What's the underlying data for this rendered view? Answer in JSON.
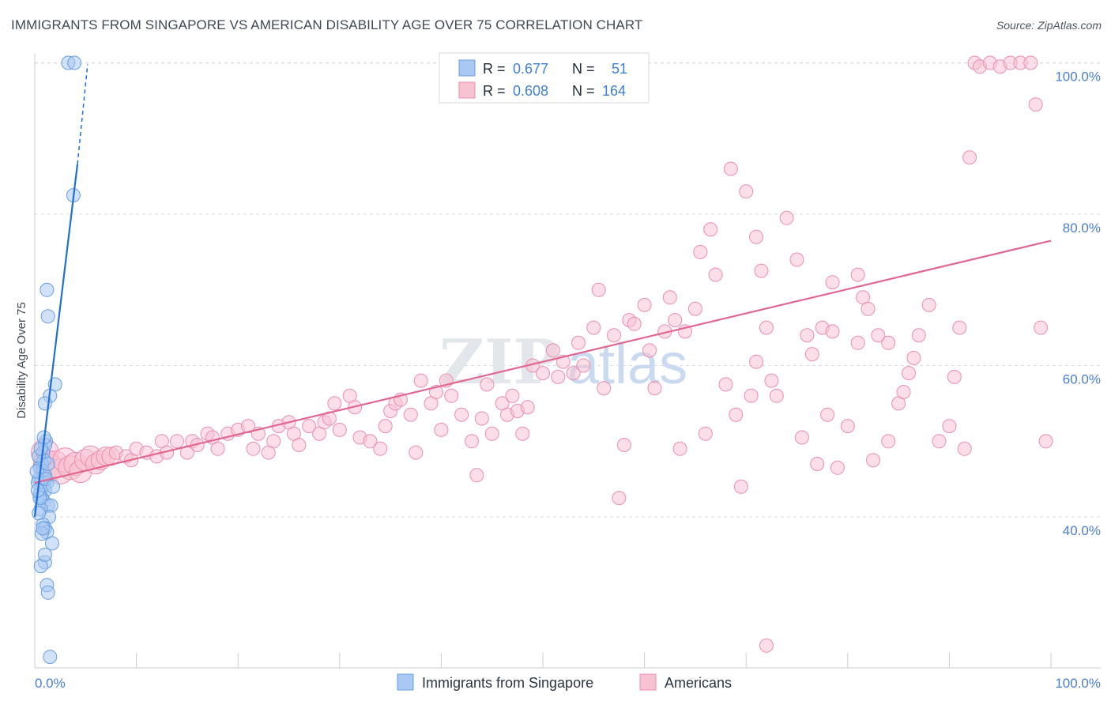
{
  "title": "IMMIGRANTS FROM SINGAPORE VS AMERICAN DISABILITY AGE OVER 75 CORRELATION CHART",
  "source": "Source: ZipAtlas.com",
  "watermark": {
    "zip": "ZIP",
    "atlas": "atlas"
  },
  "colors": {
    "blue_fill": "#a9c8f2",
    "blue_stroke": "#6a9fe0",
    "blue_line": "#1f6fd6",
    "pink_fill": "#f7c3d3",
    "pink_stroke": "#ec8fae",
    "pink_line": "#e2678f",
    "tick_color": "#4a7fd0",
    "grid": "#d9dde3"
  },
  "legend": {
    "rows": [
      {
        "r_label": "R =",
        "r_value": "0.677",
        "n_label": "N =",
        "n_value": "51"
      },
      {
        "r_label": "R =",
        "r_value": "0.608",
        "n_label": "N =",
        "n_value": "164"
      }
    ]
  },
  "bottom_legend": [
    "Immigrants from Singapore",
    "Americans"
  ],
  "chart_data": {
    "type": "scatter",
    "title": "IMMIGRANTS FROM SINGAPORE VS AMERICAN DISABILITY AGE OVER 75 CORRELATION CHART",
    "xlabel": "",
    "ylabel": "Disability Age Over 75",
    "xlim": [
      0,
      100
    ],
    "ylim": [
      20,
      100
    ],
    "x_ticks": [
      "0.0%",
      "100.0%"
    ],
    "y_ticks": [
      {
        "value": 40,
        "label": "40.0%"
      },
      {
        "value": 60,
        "label": "60.0%"
      },
      {
        "value": 80,
        "label": "80.0%"
      },
      {
        "value": 100,
        "label": "100.0%"
      }
    ],
    "series": [
      {
        "name": "Immigrants from Singapore",
        "r": 0.677,
        "n": 51,
        "trend": {
          "x0": 0,
          "y0": 40,
          "x1": 4.2,
          "y1": 86.6,
          "dash_x1": 5.2,
          "dash_y1": 99.8
        },
        "points": [
          [
            3.3,
            100
          ],
          [
            3.9,
            100
          ],
          [
            3.8,
            82.5
          ],
          [
            1.2,
            70
          ],
          [
            1.3,
            66.5
          ],
          [
            2.0,
            57.5
          ],
          [
            1.5,
            56
          ],
          [
            1.0,
            55
          ],
          [
            1.1,
            50
          ],
          [
            1.0,
            49.5
          ],
          [
            0.8,
            48.5
          ],
          [
            0.9,
            47.5
          ],
          [
            0.7,
            47
          ],
          [
            0.5,
            46.5
          ],
          [
            0.8,
            46
          ],
          [
            1.0,
            45.5
          ],
          [
            0.4,
            45
          ],
          [
            0.6,
            44.5
          ],
          [
            1.2,
            44.5
          ],
          [
            0.8,
            44
          ],
          [
            1.0,
            43.5
          ],
          [
            0.5,
            43
          ],
          [
            0.7,
            42.5
          ],
          [
            0.9,
            42
          ],
          [
            1.3,
            41.5
          ],
          [
            1.6,
            41.5
          ],
          [
            0.6,
            41
          ],
          [
            1.4,
            40
          ],
          [
            0.8,
            39
          ],
          [
            1.0,
            38.5
          ],
          [
            1.2,
            38
          ],
          [
            0.7,
            37.8
          ],
          [
            1.7,
            36.5
          ],
          [
            1.0,
            34
          ],
          [
            0.6,
            33.5
          ],
          [
            1.2,
            31
          ],
          [
            1.3,
            30
          ],
          [
            1.5,
            21.5
          ],
          [
            0.3,
            44.5
          ],
          [
            0.2,
            46
          ],
          [
            0.4,
            48
          ],
          [
            0.6,
            49
          ],
          [
            0.9,
            50.5
          ],
          [
            0.5,
            42.5
          ],
          [
            0.3,
            43.5
          ],
          [
            1.1,
            45
          ],
          [
            1.3,
            47
          ],
          [
            0.8,
            38.5
          ],
          [
            1.0,
            35
          ],
          [
            0.4,
            40.5
          ],
          [
            1.8,
            44
          ]
        ]
      },
      {
        "name": "Americans",
        "r": 0.608,
        "n": 164,
        "trend": {
          "x0": 0,
          "y0": 44.5,
          "x1": 100,
          "y1": 76.5
        },
        "points": [
          [
            1,
            48.5
          ],
          [
            1.2,
            47
          ],
          [
            1.5,
            46.5
          ],
          [
            2,
            47
          ],
          [
            2.5,
            46
          ],
          [
            3,
            47.5
          ],
          [
            3.5,
            46.5
          ],
          [
            4,
            47
          ],
          [
            4.5,
            46
          ],
          [
            5,
            47.5
          ],
          [
            5.5,
            48
          ],
          [
            6,
            47
          ],
          [
            6.5,
            47.5
          ],
          [
            7,
            48
          ],
          [
            7.5,
            48
          ],
          [
            8,
            48.5
          ],
          [
            9,
            48
          ],
          [
            9.5,
            47.5
          ],
          [
            10,
            49
          ],
          [
            11,
            48.5
          ],
          [
            12,
            48
          ],
          [
            12.5,
            50
          ],
          [
            13,
            48.5
          ],
          [
            14,
            50
          ],
          [
            15,
            48.5
          ],
          [
            15.5,
            50
          ],
          [
            16,
            49.5
          ],
          [
            17,
            51
          ],
          [
            17.5,
            50.5
          ],
          [
            18,
            49
          ],
          [
            19,
            51
          ],
          [
            20,
            51.5
          ],
          [
            21,
            52
          ],
          [
            21.5,
            49
          ],
          [
            22,
            51
          ],
          [
            23,
            48.5
          ],
          [
            23.5,
            50
          ],
          [
            24,
            52
          ],
          [
            25,
            52.5
          ],
          [
            25.5,
            51
          ],
          [
            26,
            49.5
          ],
          [
            27,
            52
          ],
          [
            28,
            51
          ],
          [
            28.5,
            52.5
          ],
          [
            29,
            53
          ],
          [
            29.5,
            55
          ],
          [
            30,
            51.5
          ],
          [
            31,
            56
          ],
          [
            31.5,
            54.5
          ],
          [
            32,
            50.5
          ],
          [
            33,
            50
          ],
          [
            34,
            49
          ],
          [
            34.5,
            52
          ],
          [
            35,
            54
          ],
          [
            35.5,
            55
          ],
          [
            36,
            55.5
          ],
          [
            37,
            53.5
          ],
          [
            37.5,
            48.5
          ],
          [
            38,
            58
          ],
          [
            39,
            55
          ],
          [
            39.5,
            56.5
          ],
          [
            40,
            51.5
          ],
          [
            40.5,
            58
          ],
          [
            41,
            56
          ],
          [
            42,
            53.5
          ],
          [
            43,
            50
          ],
          [
            43.5,
            45.5
          ],
          [
            44,
            53
          ],
          [
            44.5,
            57.5
          ],
          [
            45,
            51
          ],
          [
            46,
            55
          ],
          [
            46.5,
            53.5
          ],
          [
            47,
            56
          ],
          [
            47.5,
            54
          ],
          [
            48,
            51
          ],
          [
            48.5,
            54.5
          ],
          [
            49,
            60
          ],
          [
            50,
            59
          ],
          [
            51,
            62
          ],
          [
            51.5,
            58.5
          ],
          [
            52,
            60.5
          ],
          [
            53,
            59
          ],
          [
            53.5,
            63
          ],
          [
            54,
            60
          ],
          [
            55,
            65
          ],
          [
            55.5,
            70
          ],
          [
            56,
            57
          ],
          [
            57,
            64
          ],
          [
            57.5,
            42.5
          ],
          [
            58,
            49.5
          ],
          [
            58.5,
            66
          ],
          [
            59,
            65.5
          ],
          [
            60,
            68
          ],
          [
            60.5,
            62
          ],
          [
            61,
            57
          ],
          [
            62,
            64.5
          ],
          [
            62.5,
            69
          ],
          [
            63,
            66
          ],
          [
            63.5,
            49
          ],
          [
            64,
            64.5
          ],
          [
            65,
            67.5
          ],
          [
            65.5,
            75
          ],
          [
            66,
            51
          ],
          [
            66.5,
            78
          ],
          [
            67,
            72
          ],
          [
            68,
            57.5
          ],
          [
            68.5,
            86
          ],
          [
            69,
            53.5
          ],
          [
            70,
            83
          ],
          [
            70.5,
            56
          ],
          [
            71,
            77
          ],
          [
            71.5,
            72.5
          ],
          [
            72,
            65
          ],
          [
            72.5,
            58
          ],
          [
            73,
            56
          ],
          [
            74,
            79.5
          ],
          [
            75,
            74
          ],
          [
            75.5,
            50.5
          ],
          [
            76,
            64
          ],
          [
            77,
            47
          ],
          [
            77.5,
            65
          ],
          [
            78,
            53.5
          ],
          [
            78.5,
            71
          ],
          [
            79,
            46.5
          ],
          [
            80,
            52
          ],
          [
            81,
            63
          ],
          [
            81.5,
            69
          ],
          [
            82,
            67.5
          ],
          [
            82.5,
            47.5
          ],
          [
            83,
            64
          ],
          [
            84,
            50
          ],
          [
            85,
            55
          ],
          [
            85.5,
            56.5
          ],
          [
            86,
            59
          ],
          [
            86.5,
            61
          ],
          [
            87,
            64
          ],
          [
            88,
            68
          ],
          [
            89,
            50
          ],
          [
            90,
            52
          ],
          [
            90.5,
            58.5
          ],
          [
            91,
            65
          ],
          [
            91.5,
            49
          ],
          [
            92,
            87.5
          ],
          [
            92.5,
            100
          ],
          [
            93,
            99.5
          ],
          [
            94,
            100
          ],
          [
            95,
            99.5
          ],
          [
            96,
            100
          ],
          [
            97,
            100
          ],
          [
            98,
            100
          ],
          [
            98.5,
            94.5
          ],
          [
            99,
            65
          ],
          [
            99.5,
            50
          ],
          [
            69.5,
            44
          ],
          [
            72,
            23
          ],
          [
            76.5,
            61.5
          ],
          [
            78.5,
            64.5
          ],
          [
            81,
            72
          ],
          [
            71,
            60.5
          ],
          [
            84,
            63
          ]
        ]
      }
    ]
  }
}
